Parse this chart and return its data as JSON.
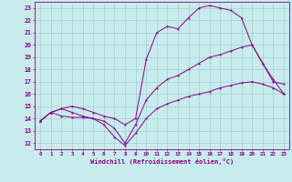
{
  "background_color": "#c8ecec",
  "grid_color": "#a8d4d4",
  "line_color": "#880088",
  "xlabel": "Windchill (Refroidissement éolien,°C)",
  "xlim": [
    -0.5,
    23.5
  ],
  "ylim": [
    11.5,
    23.5
  ],
  "xticks": [
    0,
    1,
    2,
    3,
    4,
    5,
    6,
    7,
    8,
    9,
    10,
    11,
    12,
    13,
    14,
    15,
    16,
    17,
    18,
    19,
    20,
    21,
    22,
    23
  ],
  "yticks": [
    12,
    13,
    14,
    15,
    16,
    17,
    18,
    19,
    20,
    21,
    22,
    23
  ],
  "series": [
    {
      "x": [
        0,
        1,
        2,
        3,
        4,
        5,
        6,
        7,
        8,
        9,
        10,
        11,
        12,
        13,
        14,
        15,
        16,
        17,
        18,
        19,
        20,
        21,
        22,
        23
      ],
      "y": [
        13.8,
        14.5,
        14.2,
        14.1,
        14.1,
        14.0,
        13.5,
        12.5,
        11.8,
        12.8,
        14.0,
        14.8,
        15.2,
        15.5,
        15.8,
        16.0,
        16.2,
        16.5,
        16.7,
        16.9,
        17.0,
        16.8,
        16.5,
        16.0
      ]
    },
    {
      "x": [
        0,
        1,
        2,
        3,
        4,
        5,
        6,
        7,
        8,
        9,
        10,
        11,
        12,
        13,
        14,
        15,
        16,
        17,
        18,
        19,
        20,
        21,
        22,
        23
      ],
      "y": [
        13.8,
        14.5,
        14.8,
        14.5,
        14.2,
        14.0,
        13.8,
        13.2,
        12.0,
        13.5,
        15.5,
        16.5,
        17.2,
        17.5,
        18.0,
        18.5,
        19.0,
        19.2,
        19.5,
        19.8,
        20.0,
        18.5,
        17.0,
        16.8
      ]
    },
    {
      "x": [
        0,
        1,
        2,
        3,
        4,
        5,
        6,
        7,
        8,
        9,
        10,
        11,
        12,
        13,
        14,
        15,
        16,
        17,
        18,
        19,
        20,
        21,
        22,
        23
      ],
      "y": [
        13.8,
        14.5,
        14.8,
        15.0,
        14.8,
        14.5,
        14.2,
        14.0,
        13.5,
        14.0,
        18.8,
        21.0,
        21.5,
        21.3,
        22.2,
        23.0,
        23.2,
        23.0,
        22.8,
        22.2,
        20.0,
        18.5,
        17.2,
        16.0
      ]
    }
  ]
}
